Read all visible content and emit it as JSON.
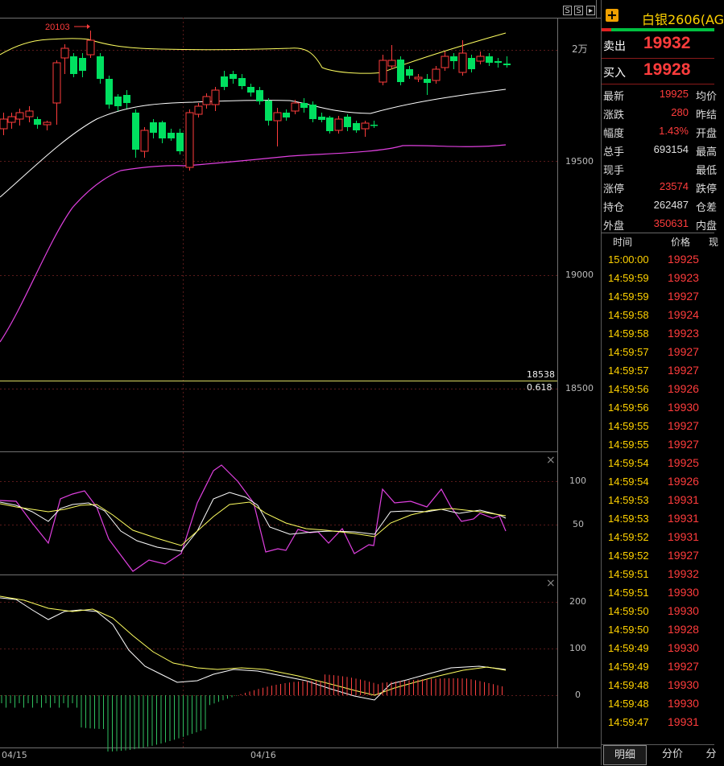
{
  "chart": {
    "price_axis": [
      "2万",
      "19500",
      "19000",
      "18500"
    ],
    "osc1_axis": [
      "100",
      "50"
    ],
    "osc2_axis": [
      "200",
      "100",
      "0"
    ],
    "date_labels": [
      "04/15",
      "04/16"
    ],
    "high_marker": "20103",
    "level_line_value": "18538",
    "fib_label": "0.618",
    "colors": {
      "up": "#ff3c3c",
      "down": "#00e060",
      "upper_band": "#ffff60",
      "mid_band": "#ffffff",
      "lower_band": "#e040e0"
    }
  },
  "toolbar": {
    "s_label": "S",
    "s2_label": "S"
  },
  "right_panel": {
    "title": "白银2606(AG",
    "sell_label": "卖出",
    "sell_value": "19932",
    "buy_label": "买入",
    "buy_value": "19928",
    "stats": [
      {
        "label": "最新",
        "value": "19925",
        "color": "#ff3c3c",
        "label2": "均价"
      },
      {
        "label": "涨跌",
        "value": "280",
        "color": "#ff3c3c",
        "label2": "昨结"
      },
      {
        "label": "幅度",
        "value": "1.43%",
        "color": "#ff3c3c",
        "label2": "开盘"
      },
      {
        "label": "总手",
        "value": "693154",
        "color": "#e0e0e0",
        "label2": "最高"
      },
      {
        "label": "现手",
        "value": "",
        "color": "#e0e0e0",
        "label2": "最低"
      },
      {
        "label": "涨停",
        "value": "23574",
        "color": "#ff3c3c",
        "label2": "跌停"
      },
      {
        "label": "持仓",
        "value": "262487",
        "color": "#e0e0e0",
        "label2": "仓差"
      },
      {
        "label": "外盘",
        "value": "350631",
        "color": "#ff3c3c",
        "label2": "内盘"
      }
    ],
    "tick_header": {
      "time": "时间",
      "price": "价格",
      "vol": "现"
    },
    "ticks": [
      {
        "time": "15:00:00",
        "price": "19925"
      },
      {
        "time": "14:59:59",
        "price": "19923"
      },
      {
        "time": "14:59:59",
        "price": "19927"
      },
      {
        "time": "14:59:58",
        "price": "19924"
      },
      {
        "time": "14:59:58",
        "price": "19923"
      },
      {
        "time": "14:59:57",
        "price": "19927"
      },
      {
        "time": "14:59:57",
        "price": "19927"
      },
      {
        "time": "14:59:56",
        "price": "19926"
      },
      {
        "time": "14:59:56",
        "price": "19930"
      },
      {
        "time": "14:59:55",
        "price": "19927"
      },
      {
        "time": "14:59:55",
        "price": "19927"
      },
      {
        "time": "14:59:54",
        "price": "19925"
      },
      {
        "time": "14:59:54",
        "price": "19926"
      },
      {
        "time": "14:59:53",
        "price": "19931"
      },
      {
        "time": "14:59:53",
        "price": "19931"
      },
      {
        "time": "14:59:52",
        "price": "19931"
      },
      {
        "time": "14:59:52",
        "price": "19927"
      },
      {
        "time": "14:59:51",
        "price": "19932"
      },
      {
        "time": "14:59:51",
        "price": "19930"
      },
      {
        "time": "14:59:50",
        "price": "19930"
      },
      {
        "time": "14:59:50",
        "price": "19928"
      },
      {
        "time": "14:59:49",
        "price": "19930"
      },
      {
        "time": "14:59:49",
        "price": "19927"
      },
      {
        "time": "14:59:48",
        "price": "19930"
      },
      {
        "time": "14:59:48",
        "price": "19930"
      },
      {
        "time": "14:59:47",
        "price": "19931"
      }
    ],
    "tabs": [
      "明细",
      "分价",
      "分"
    ]
  }
}
